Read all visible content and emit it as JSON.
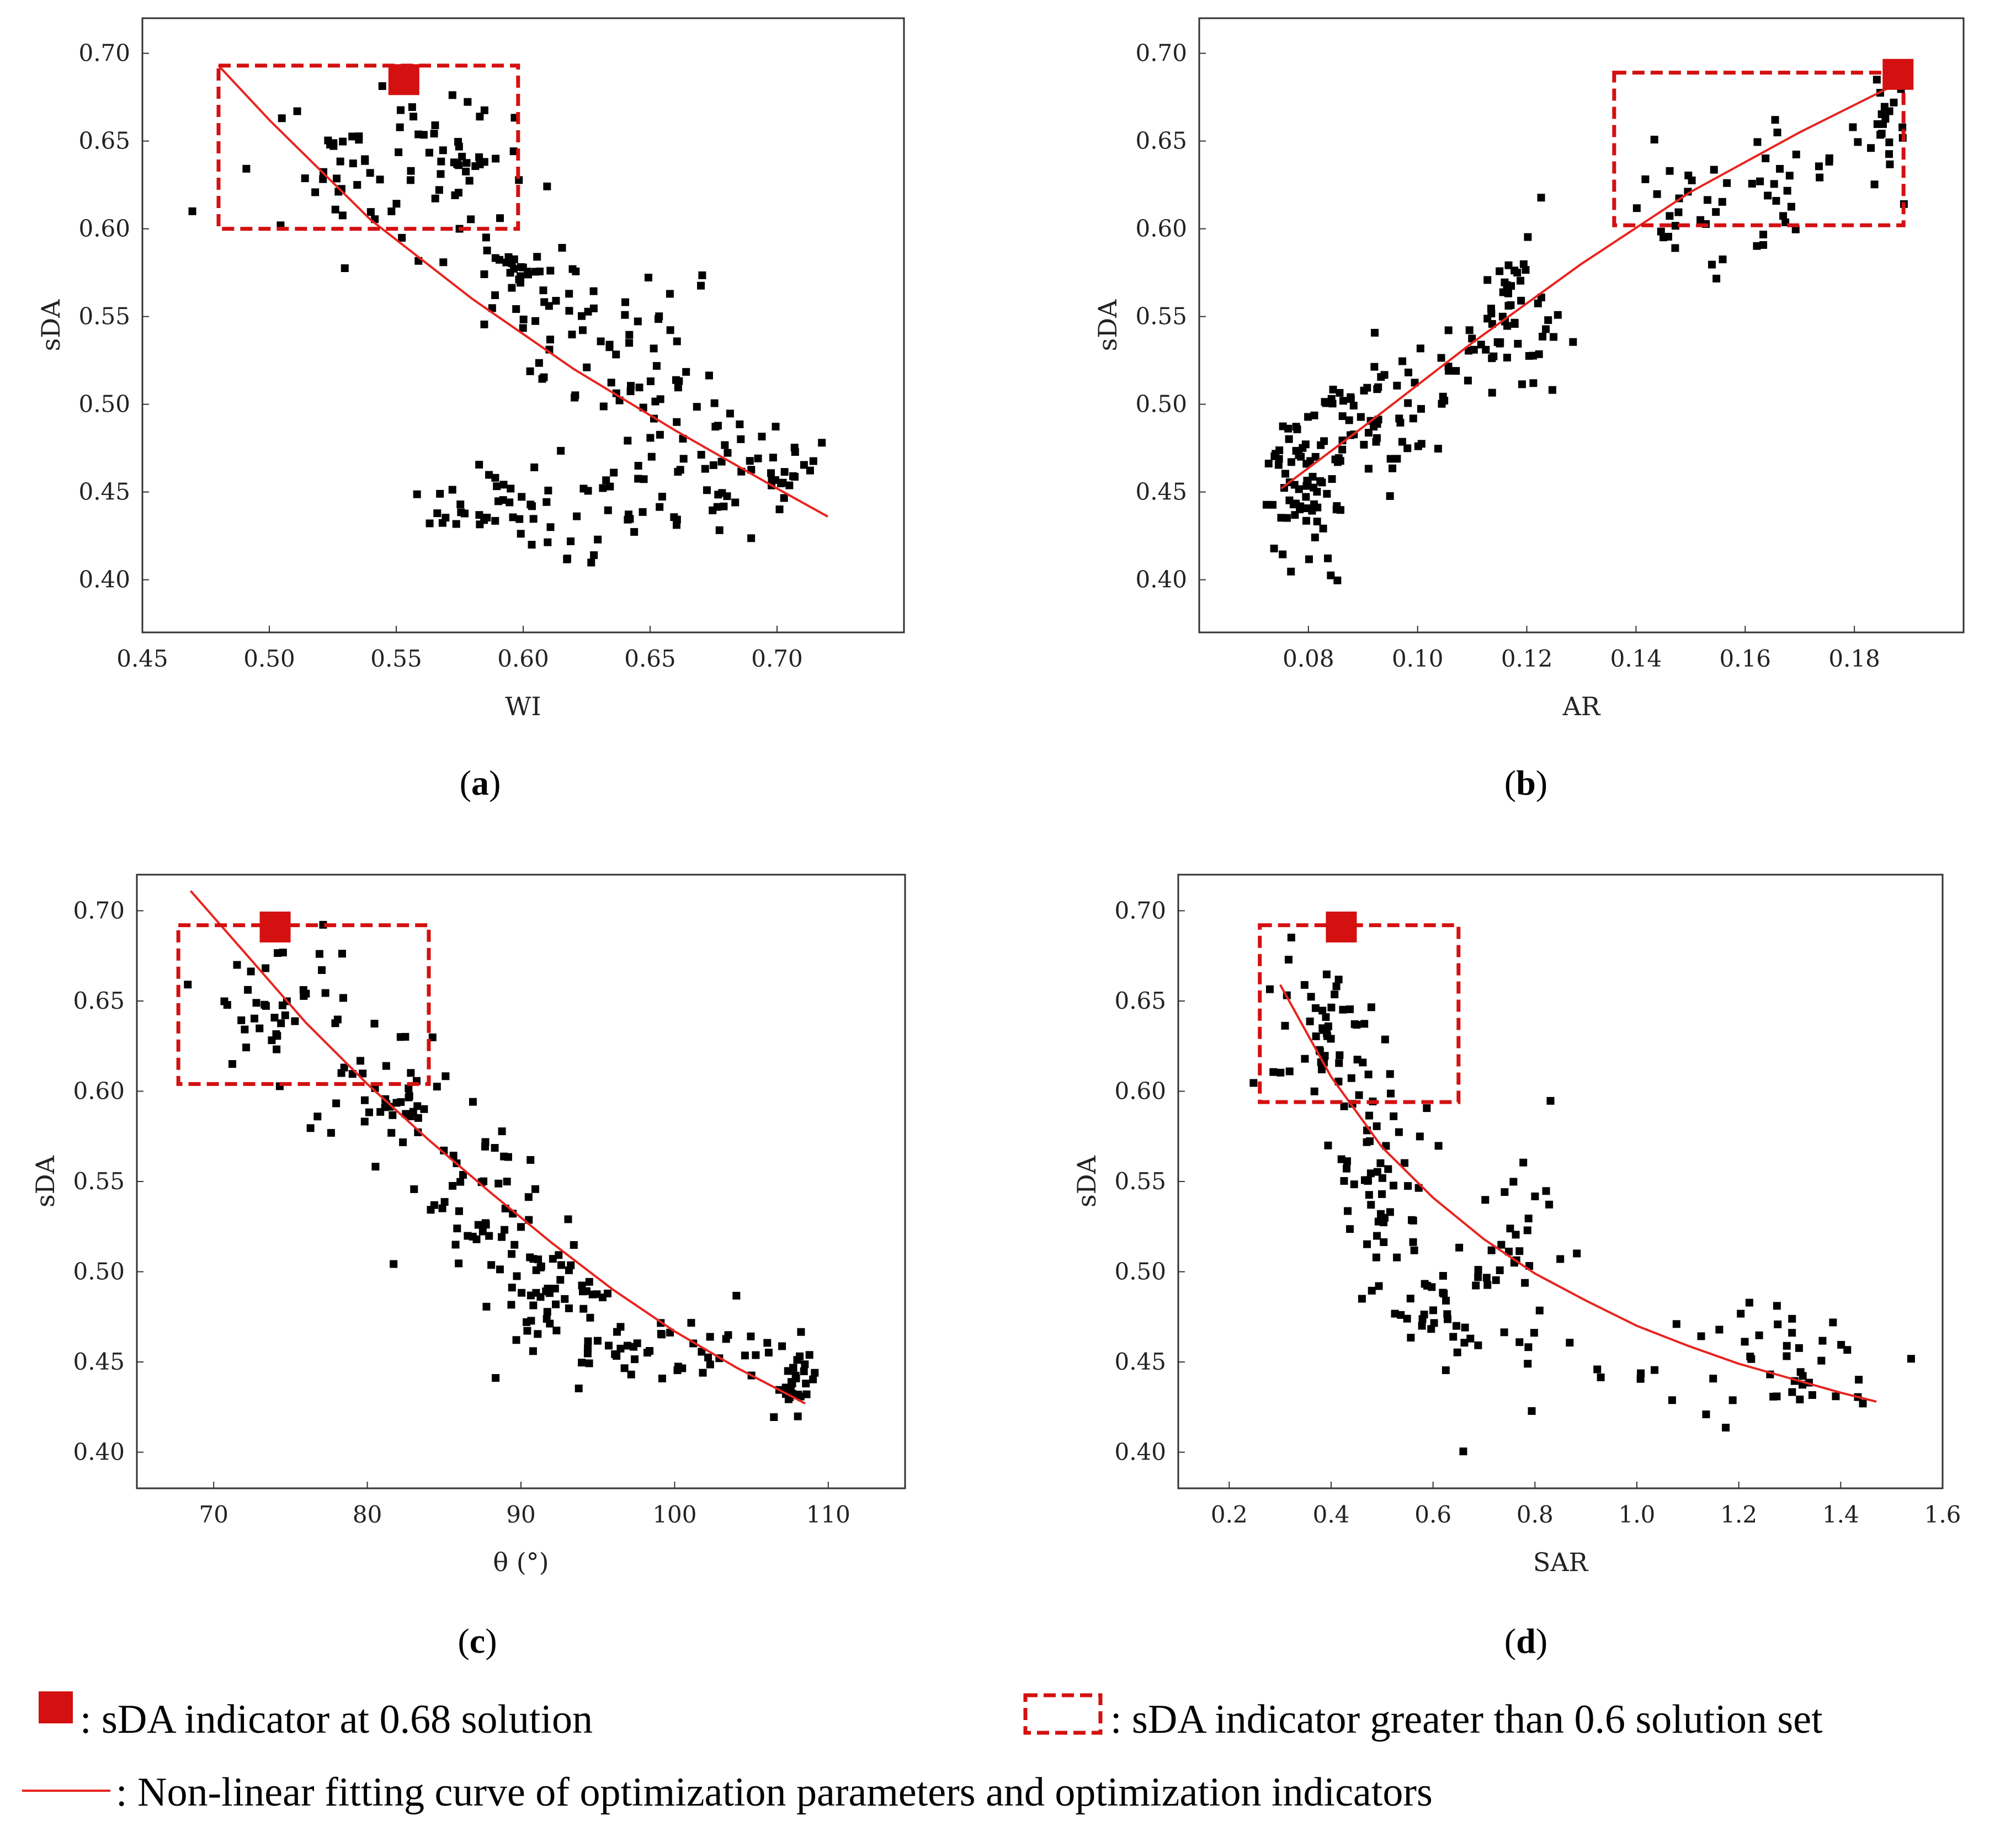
{
  "colors": {
    "fit": "#e8231e",
    "marker": "#d41010",
    "points": "#000000",
    "frame": "#333333"
  },
  "chart_data": [
    {
      "id": "a",
      "type": "scatter",
      "caption": "a",
      "xlabel": "WI",
      "ylabel": "sDA",
      "xlim": [
        0.45,
        0.75
      ],
      "ylim": [
        0.37,
        0.72
      ],
      "xticks": [
        0.45,
        0.5,
        0.55,
        0.6,
        0.65,
        0.7
      ],
      "xtick_labels": [
        "0.45",
        "0.50",
        "0.55",
        "0.60",
        "0.65",
        "0.70"
      ],
      "yticks": [
        0.4,
        0.45,
        0.5,
        0.55,
        0.6,
        0.65,
        0.7
      ],
      "ytick_labels": [
        "0.40",
        "0.45",
        "0.50",
        "0.55",
        "0.60",
        "0.65",
        "0.70"
      ],
      "highlight": {
        "x": 0.553,
        "y": 0.685,
        "label": "sDA indicator at 0.68 solution"
      },
      "region": {
        "x0": 0.48,
        "x1": 0.598,
        "y0": 0.6,
        "y1": 0.693
      },
      "fit": {
        "x": [
          0.48,
          0.5,
          0.54,
          0.58,
          0.62,
          0.66,
          0.7,
          0.72
        ],
        "y": [
          0.693,
          0.662,
          0.605,
          0.56,
          0.52,
          0.485,
          0.452,
          0.436
        ]
      },
      "clusters": [
        {
          "cx": 0.52,
          "cy": 0.63,
          "sx": 0.025,
          "sy": 0.025,
          "n": 40
        },
        {
          "cx": 0.57,
          "cy": 0.64,
          "sx": 0.015,
          "sy": 0.02,
          "n": 40
        },
        {
          "cx": 0.6,
          "cy": 0.57,
          "sx": 0.012,
          "sy": 0.025,
          "n": 45
        },
        {
          "cx": 0.64,
          "cy": 0.52,
          "sx": 0.015,
          "sy": 0.03,
          "n": 55
        },
        {
          "cx": 0.68,
          "cy": 0.47,
          "sx": 0.02,
          "sy": 0.02,
          "n": 40
        },
        {
          "cx": 0.59,
          "cy": 0.44,
          "sx": 0.015,
          "sy": 0.012,
          "n": 35
        },
        {
          "cx": 0.64,
          "cy": 0.44,
          "sx": 0.02,
          "sy": 0.015,
          "n": 30
        },
        {
          "cx": 0.71,
          "cy": 0.46,
          "sx": 0.008,
          "sy": 0.01,
          "n": 10
        }
      ]
    },
    {
      "id": "b",
      "type": "scatter",
      "caption": "b",
      "xlabel": "AR",
      "ylabel": "sDA",
      "xlim": [
        0.06,
        0.2
      ],
      "ylim": [
        0.37,
        0.72
      ],
      "xticks": [
        0.08,
        0.1,
        0.12,
        0.14,
        0.16,
        0.18
      ],
      "xtick_labels": [
        "0.08",
        "0.10",
        "0.12",
        "0.14",
        "0.16",
        "0.18"
      ],
      "yticks": [
        0.4,
        0.45,
        0.5,
        0.55,
        0.6,
        0.65,
        0.7
      ],
      "ytick_labels": [
        "0.40",
        "0.45",
        "0.50",
        "0.55",
        "0.60",
        "0.65",
        "0.70"
      ],
      "highlight": {
        "x": 0.188,
        "y": 0.688,
        "label": "sDA indicator at 0.68 solution"
      },
      "region": {
        "x0": 0.136,
        "x1": 0.189,
        "y0": 0.602,
        "y1": 0.689
      },
      "fit": {
        "x": [
          0.075,
          0.09,
          0.11,
          0.13,
          0.15,
          0.17,
          0.188
        ],
        "y": [
          0.452,
          0.487,
          0.535,
          0.58,
          0.621,
          0.655,
          0.683
        ]
      },
      "clusters": [
        {
          "cx": 0.079,
          "cy": 0.455,
          "sx": 0.004,
          "sy": 0.02,
          "n": 70
        },
        {
          "cx": 0.09,
          "cy": 0.49,
          "sx": 0.005,
          "sy": 0.02,
          "n": 45
        },
        {
          "cx": 0.102,
          "cy": 0.51,
          "sx": 0.005,
          "sy": 0.015,
          "n": 20
        },
        {
          "cx": 0.118,
          "cy": 0.55,
          "sx": 0.005,
          "sy": 0.02,
          "n": 55
        },
        {
          "cx": 0.15,
          "cy": 0.61,
          "sx": 0.006,
          "sy": 0.02,
          "n": 30
        },
        {
          "cx": 0.168,
          "cy": 0.63,
          "sx": 0.005,
          "sy": 0.02,
          "n": 20
        },
        {
          "cx": 0.186,
          "cy": 0.655,
          "sx": 0.002,
          "sy": 0.02,
          "n": 25
        }
      ]
    },
    {
      "id": "c",
      "type": "scatter",
      "caption": "c",
      "xlabel": "θ (°)",
      "ylabel": "sDA",
      "xlim": [
        65,
        115
      ],
      "ylim": [
        0.38,
        0.72
      ],
      "xticks": [
        70,
        80,
        90,
        100,
        110
      ],
      "xtick_labels": [
        "70",
        "80",
        "90",
        "100",
        "110"
      ],
      "yticks": [
        0.4,
        0.45,
        0.5,
        0.55,
        0.6,
        0.65,
        0.7
      ],
      "ytick_labels": [
        "0.40",
        "0.45",
        "0.50",
        "0.55",
        "0.60",
        "0.65",
        "0.70"
      ],
      "highlight": {
        "x": 74,
        "y": 0.691,
        "label": "sDA indicator at 0.68 solution"
      },
      "region": {
        "x0": 67.7,
        "x1": 84,
        "y0": 0.604,
        "y1": 0.692
      },
      "fit": {
        "x": [
          68.5,
          72,
          76,
          80,
          84,
          88,
          92,
          96,
          100,
          104,
          108.5
        ],
        "y": [
          0.711,
          0.677,
          0.638,
          0.604,
          0.573,
          0.544,
          0.516,
          0.49,
          0.467,
          0.447,
          0.427
        ]
      },
      "clusters": [
        {
          "cx": 74,
          "cy": 0.655,
          "sx": 2.5,
          "sy": 0.02,
          "n": 40
        },
        {
          "cx": 81,
          "cy": 0.595,
          "sx": 2.0,
          "sy": 0.02,
          "n": 45
        },
        {
          "cx": 87,
          "cy": 0.545,
          "sx": 2.0,
          "sy": 0.02,
          "n": 40
        },
        {
          "cx": 91,
          "cy": 0.49,
          "sx": 2.0,
          "sy": 0.02,
          "n": 55
        },
        {
          "cx": 96,
          "cy": 0.46,
          "sx": 2.5,
          "sy": 0.015,
          "n": 30
        },
        {
          "cx": 103,
          "cy": 0.455,
          "sx": 2.0,
          "sy": 0.02,
          "n": 20
        },
        {
          "cx": 108,
          "cy": 0.44,
          "sx": 0.6,
          "sy": 0.012,
          "n": 30
        }
      ]
    },
    {
      "id": "d",
      "type": "scatter",
      "caption": "d",
      "xlabel": "SAR",
      "ylabel": "sDA",
      "xlim": [
        0.1,
        1.6
      ],
      "ylim": [
        0.38,
        0.72
      ],
      "xticks": [
        0.2,
        0.4,
        0.6,
        0.8,
        1.0,
        1.2,
        1.4,
        1.6
      ],
      "xtick_labels": [
        "0.2",
        "0.4",
        "0.6",
        "0.8",
        "1.0",
        "1.2",
        "1.4",
        "1.6"
      ],
      "yticks": [
        0.4,
        0.45,
        0.5,
        0.55,
        0.6,
        0.65,
        0.7
      ],
      "ytick_labels": [
        "0.40",
        "0.45",
        "0.50",
        "0.55",
        "0.60",
        "0.65",
        "0.70"
      ],
      "highlight": {
        "x": 0.42,
        "y": 0.691,
        "label": "sDA indicator at 0.68 solution"
      },
      "region": {
        "x0": 0.26,
        "x1": 0.65,
        "y0": 0.594,
        "y1": 0.692
      },
      "fit": {
        "x": [
          0.3,
          0.4,
          0.5,
          0.6,
          0.7,
          0.8,
          0.9,
          1.0,
          1.1,
          1.2,
          1.3,
          1.4,
          1.47
        ],
        "y": [
          0.659,
          0.608,
          0.569,
          0.541,
          0.518,
          0.499,
          0.484,
          0.47,
          0.459,
          0.449,
          0.441,
          0.433,
          0.428
        ]
      },
      "clusters": [
        {
          "cx": 0.38,
          "cy": 0.63,
          "sx": 0.05,
          "sy": 0.025,
          "n": 55
        },
        {
          "cx": 0.5,
          "cy": 0.55,
          "sx": 0.04,
          "sy": 0.035,
          "n": 50
        },
        {
          "cx": 0.6,
          "cy": 0.48,
          "sx": 0.06,
          "sy": 0.02,
          "n": 35
        },
        {
          "cx": 0.75,
          "cy": 0.5,
          "sx": 0.06,
          "sy": 0.04,
          "n": 35
        },
        {
          "cx": 1.0,
          "cy": 0.445,
          "sx": 0.08,
          "sy": 0.01,
          "n": 8
        },
        {
          "cx": 1.3,
          "cy": 0.445,
          "sx": 0.08,
          "sy": 0.02,
          "n": 40
        }
      ]
    }
  ],
  "legend": {
    "marker_label": ": sDA indicator at 0.68 solution",
    "region_label": ": sDA indicator greater than 0.6 solution set",
    "fit_label": ": Non-linear fitting curve of optimization parameters and optimization indicators"
  }
}
